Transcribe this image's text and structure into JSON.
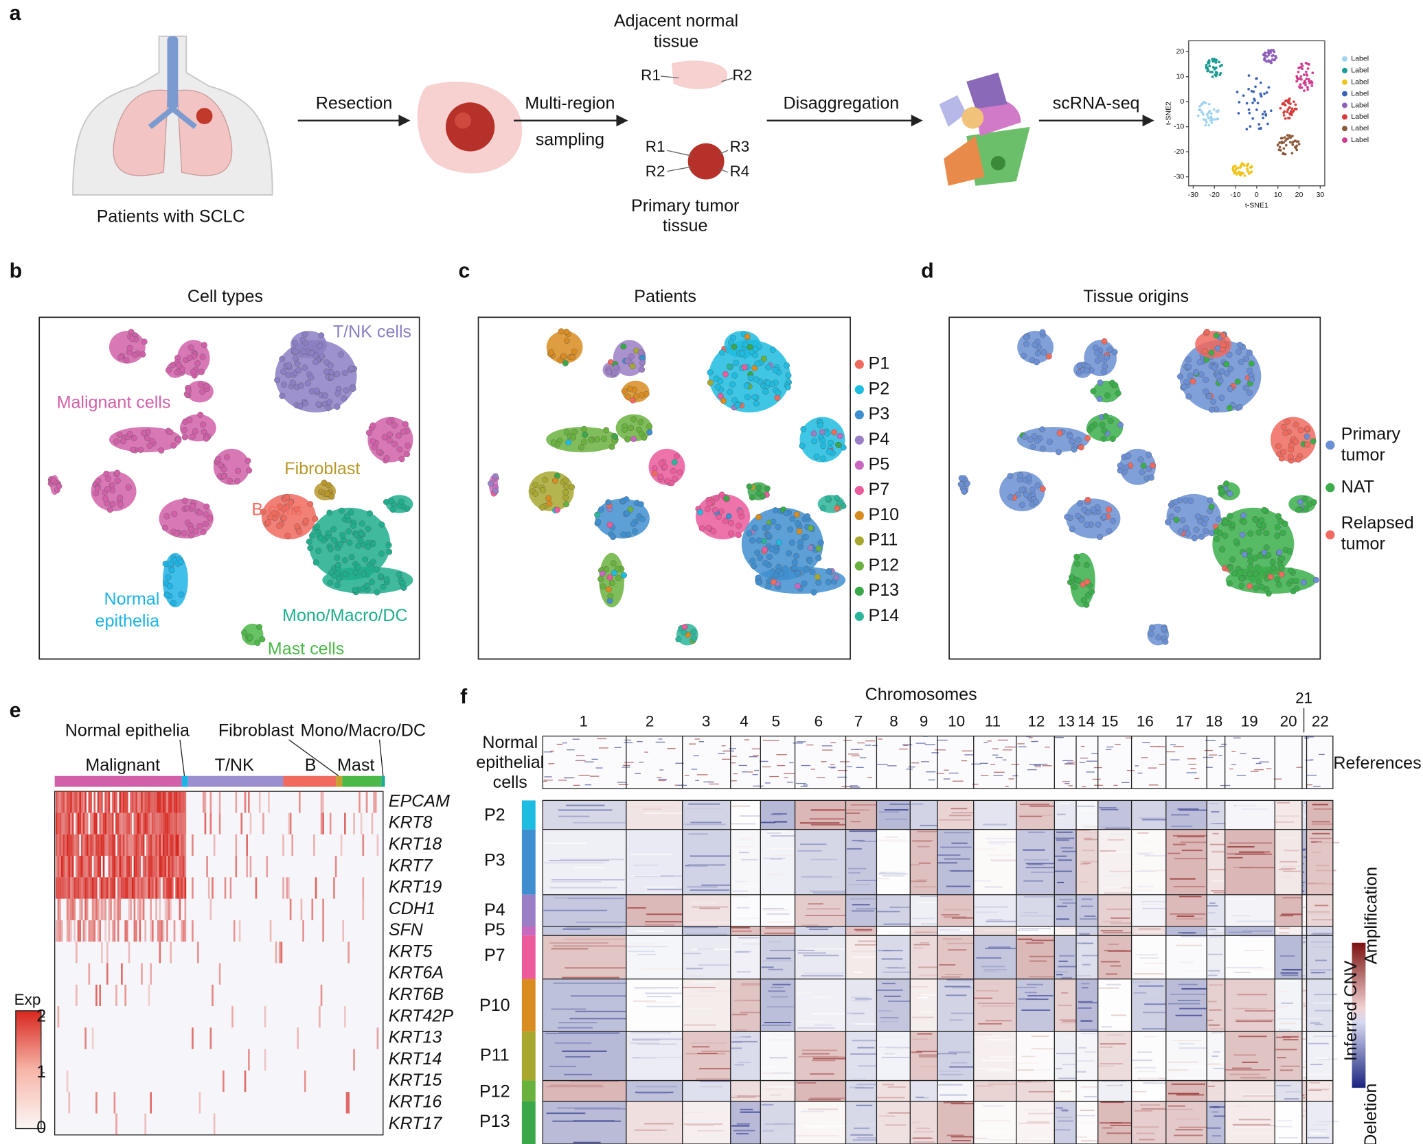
{
  "panel_a": {
    "label": "a",
    "patients": "Patients with SCLC",
    "steps": [
      "Resection",
      "Multi-region",
      "sampling",
      "Disaggregation",
      "scRNA-seq"
    ],
    "normal_tissue": [
      "Adjacent normal",
      "tissue"
    ],
    "normal_regions": [
      "R1",
      "R2"
    ],
    "tumor_regions": [
      "R1",
      "R3",
      "R2",
      "R4"
    ],
    "tumor_tissue": [
      "Primary tumor",
      "tissue"
    ],
    "tsne": {
      "legend": [
        {
          "name": "Label",
          "color": "#9fd3ee"
        },
        {
          "name": "Label",
          "color": "#1a9b93"
        },
        {
          "name": "Label",
          "color": "#f0c419"
        },
        {
          "name": "Label",
          "color": "#3a63b8"
        },
        {
          "name": "Label",
          "color": "#8e5fb8"
        },
        {
          "name": "Label",
          "color": "#d63b3b"
        },
        {
          "name": "Label",
          "color": "#8b5a3c"
        },
        {
          "name": "Label",
          "color": "#cf3a8f"
        }
      ],
      "xticks": [
        -30,
        -20,
        -10,
        0,
        10,
        20,
        30
      ],
      "yticks": [
        20,
        10,
        0,
        -10,
        -20,
        -30
      ],
      "xlabel": "t-SNE1",
      "ylabel": "t-SNE2"
    }
  },
  "panel_b": {
    "label": "b",
    "title": "Cell types",
    "annotations": [
      {
        "text": "T/NK cells",
        "color": "#8c7fc4"
      },
      {
        "text": "Malignant cells",
        "color": "#d160a8"
      },
      {
        "text": "Fibroblast",
        "color": "#b8982a"
      },
      {
        "text": "B cells",
        "color": "#f06a5e"
      },
      {
        "text": "Normal",
        "color": "#1eb4e6"
      },
      {
        "text": "epithelia",
        "color": "#1eb4e6"
      },
      {
        "text": "Mono/Macro/DC",
        "color": "#1fae8c"
      },
      {
        "text": "Mast cells",
        "color": "#4cb848"
      }
    ]
  },
  "panel_c": {
    "label": "c",
    "title": "Patients",
    "legend": [
      {
        "name": "P1",
        "color": "#f06a5e"
      },
      {
        "name": "P2",
        "color": "#1ebce0"
      },
      {
        "name": "P3",
        "color": "#3f8fd0"
      },
      {
        "name": "P4",
        "color": "#9b7fc6"
      },
      {
        "name": "P5",
        "color": "#c869c0"
      },
      {
        "name": "P7",
        "color": "#ec5b9c"
      },
      {
        "name": "P10",
        "color": "#d98c20"
      },
      {
        "name": "P11",
        "color": "#a8a830"
      },
      {
        "name": "P12",
        "color": "#6ab23e"
      },
      {
        "name": "P13",
        "color": "#3aa84a"
      },
      {
        "name": "P14",
        "color": "#2bb59a"
      }
    ]
  },
  "panel_d": {
    "label": "d",
    "title": "Tissue origins",
    "legend": [
      {
        "lines": [
          "Primary",
          "tumor"
        ],
        "color": "#6a8fd4"
      },
      {
        "lines": [
          "NAT"
        ],
        "color": "#3aae4a"
      },
      {
        "lines": [
          "Relapsed",
          "tumor"
        ],
        "color": "#f06a5e"
      }
    ]
  },
  "panel_e": {
    "label": "e",
    "group_labels": [
      "Normal epithelia",
      "Fibroblast",
      "Mono/Macro/DC",
      "Malignant",
      "T/NK",
      "B",
      "Mast"
    ],
    "genes": [
      "EPCAM",
      "KRT8",
      "KRT18",
      "KRT7",
      "KRT19",
      "CDH1",
      "SFN",
      "KRT5",
      "KRT6A",
      "KRT6B",
      "KRT42P",
      "KRT13",
      "KRT14",
      "KRT15",
      "KRT16",
      "KRT17"
    ],
    "legend": {
      "title": "Exp",
      "ticks": [
        2,
        1,
        0
      ]
    }
  },
  "panel_f": {
    "label": "f",
    "title": "Chromosomes",
    "chromosomes": [
      1,
      2,
      3,
      4,
      5,
      6,
      7,
      8,
      9,
      10,
      11,
      12,
      13,
      14,
      15,
      16,
      17,
      18,
      19,
      20,
      21,
      22
    ],
    "reference_label": [
      "Normal",
      "epithelial",
      "cells"
    ],
    "references": "References",
    "patients": [
      "P2",
      "P3",
      "P4",
      "P5",
      "P7",
      "P10",
      "P11",
      "P12",
      "P13"
    ],
    "legend": [
      "Amplification",
      "Inferred CNV",
      "Deletion"
    ]
  }
}
